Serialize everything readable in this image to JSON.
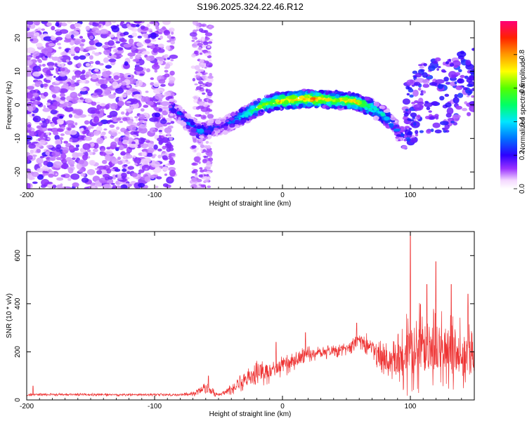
{
  "chart_data": [
    {
      "type": "heatmap",
      "title": "S196.2025.324.22.46.R12",
      "xlabel": "Height of straight line (km)",
      "ylabel": "Frequency (Hz)",
      "xlim": [
        -200,
        150
      ],
      "ylim": [
        -25,
        25
      ],
      "xticks": [
        "-200",
        "-100",
        "0",
        "100"
      ],
      "xtick_values": [
        -200,
        -100,
        0,
        100
      ],
      "yticks": [
        "-20",
        "-10",
        "0",
        "10",
        "20"
      ],
      "ytick_values": [
        -20,
        -10,
        0,
        10,
        20
      ],
      "colorbar": {
        "label": "Normalized spectral amplitude",
        "range": [
          0,
          1
        ],
        "ticks": [
          "0.0",
          "0.2",
          "0.4",
          "0.6",
          "0.8"
        ],
        "tick_values": [
          0.0,
          0.2,
          0.4,
          0.6,
          0.8
        ]
      },
      "ridge": {
        "description_x": [
          -85,
          -75,
          -65,
          -55,
          -45,
          -35,
          -25,
          -15,
          -5,
          5,
          15,
          25,
          35,
          45,
          55,
          65,
          75,
          85,
          92
        ],
        "freq": [
          -1,
          -5,
          -8,
          -7,
          -6,
          -4,
          -2,
          0,
          1,
          1.5,
          1.8,
          1.8,
          1.6,
          1.4,
          1,
          0,
          -2,
          -5,
          -9
        ],
        "amplitude": [
          0.3,
          0.35,
          0.4,
          0.3,
          0.3,
          0.45,
          0.6,
          0.7,
          0.8,
          0.85,
          0.9,
          0.95,
          0.8,
          0.75,
          0.9,
          0.7,
          0.55,
          0.45,
          0.3
        ]
      }
    },
    {
      "type": "line",
      "xlabel": "Height of straight line (km)",
      "ylabel": "SNR (10 * v/v)",
      "xlim": [
        -200,
        150
      ],
      "ylim": [
        0,
        700
      ],
      "xticks": [
        "-200",
        "-100",
        "0",
        "100"
      ],
      "xtick_values": [
        -200,
        -100,
        0,
        100
      ],
      "yticks": [
        "0",
        "200",
        "400",
        "600"
      ],
      "ytick_values": [
        0,
        200,
        400,
        600
      ],
      "series": [
        {
          "name": "SNR",
          "color": "#ee3333",
          "envelope_x": [
            -200,
            -80,
            -70,
            -60,
            -50,
            -40,
            -30,
            -20,
            -10,
            0,
            10,
            20,
            30,
            40,
            50,
            60,
            70,
            80,
            90,
            100,
            110,
            120,
            130,
            140,
            150
          ],
          "envelope_mean": [
            22,
            22,
            25,
            45,
            20,
            45,
            80,
            110,
            120,
            140,
            165,
            190,
            200,
            205,
            210,
            255,
            220,
            160,
            170,
            190,
            210,
            220,
            210,
            190,
            170
          ],
          "envelope_amp": [
            6,
            6,
            10,
            30,
            8,
            25,
            40,
            55,
            55,
            50,
            40,
            35,
            35,
            30,
            30,
            40,
            50,
            80,
            110,
            200,
            200,
            180,
            170,
            150,
            130
          ],
          "peaks": [
            [
              -195,
              58
            ],
            [
              -58,
              100
            ],
            [
              -5,
              240
            ],
            [
              18,
              280
            ],
            [
              58,
              320
            ],
            [
              100,
              700
            ],
            [
              113,
              480
            ],
            [
              120,
              575
            ],
            [
              132,
              480
            ],
            [
              145,
              440
            ]
          ]
        }
      ]
    }
  ],
  "colors": {
    "axis": "#000000",
    "line": "#ee3333",
    "background": "#ffffff"
  }
}
